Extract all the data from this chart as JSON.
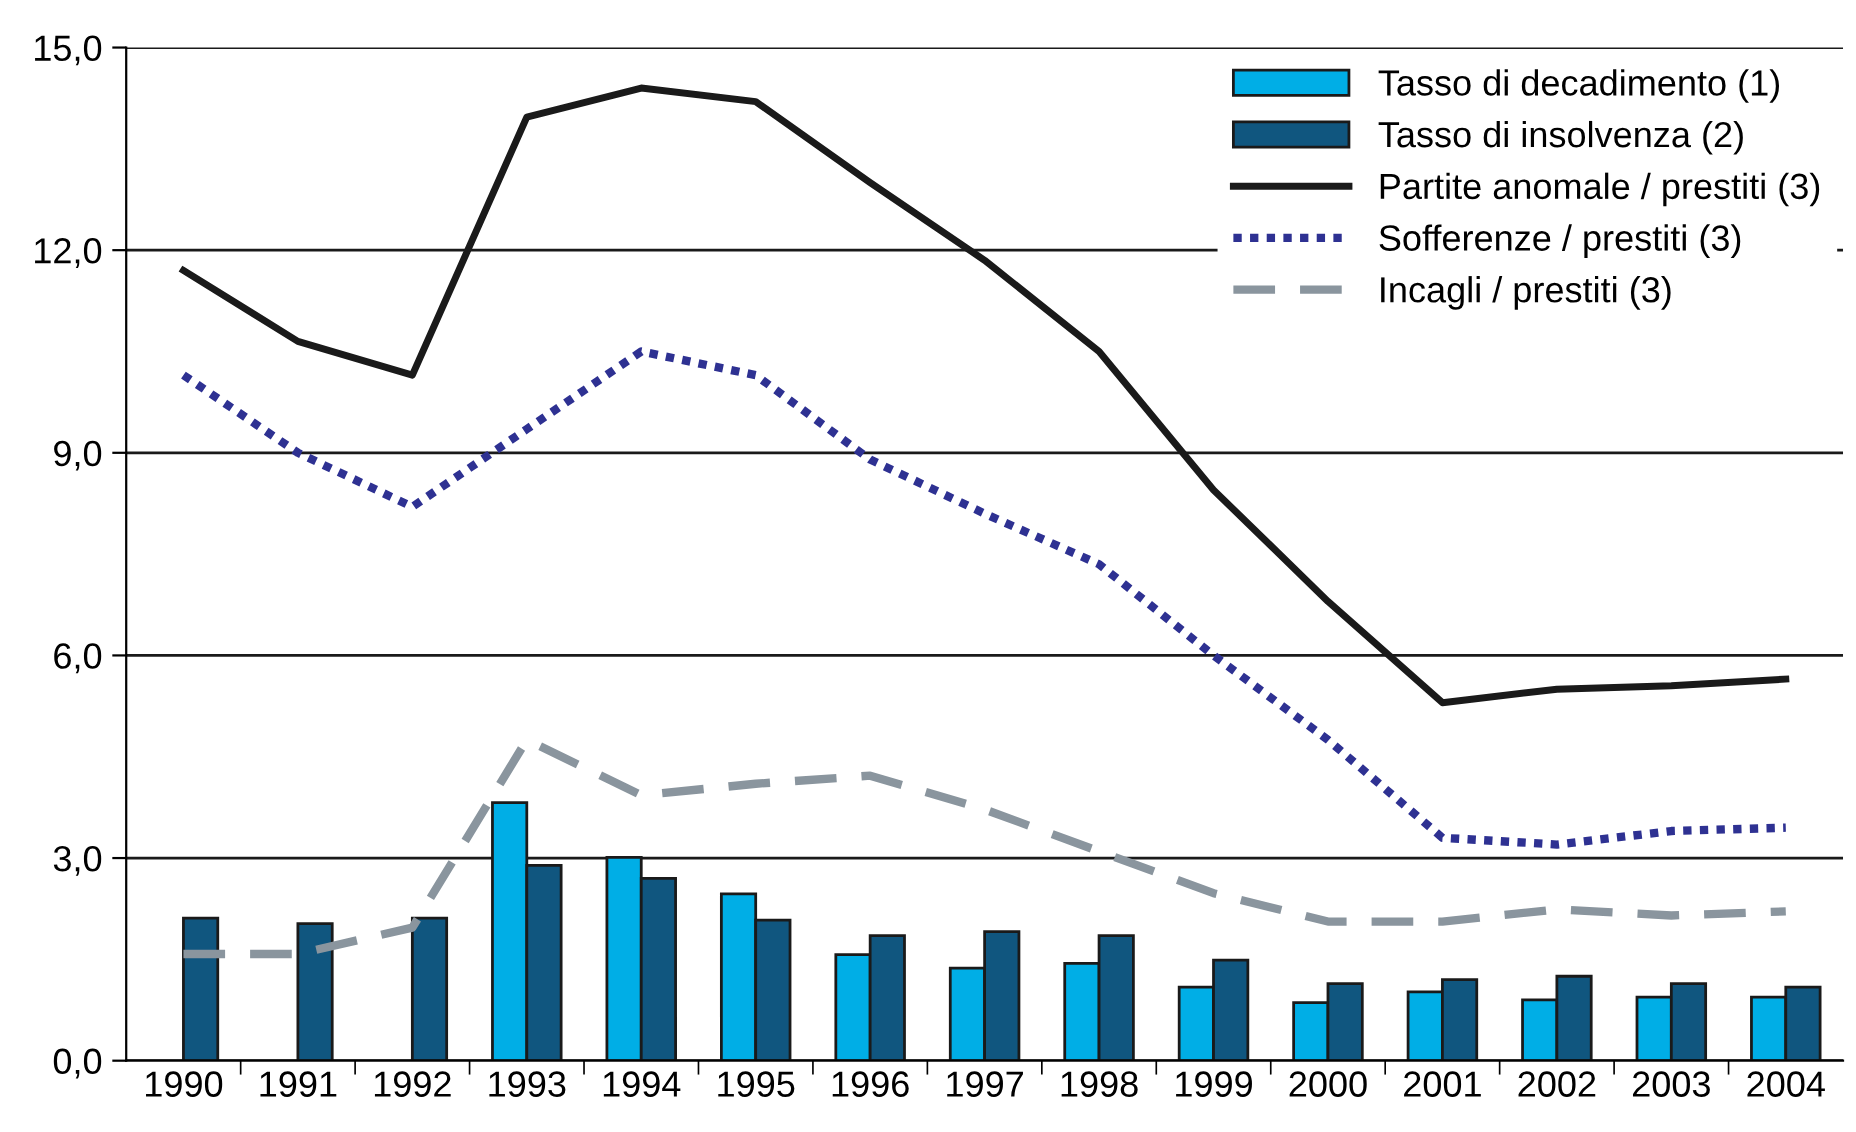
{
  "chart_data": {
    "type": "bar",
    "categories": [
      "1990",
      "1991",
      "1992",
      "1993",
      "1994",
      "1995",
      "1996",
      "1997",
      "1998",
      "1999",
      "2000",
      "2001",
      "2002",
      "2003",
      "2004"
    ],
    "series": [
      {
        "name": "Tasso di decadimento (1)",
        "color": "#00aee6",
        "values": [
          null,
          null,
          null,
          3.82,
          3.01,
          2.47,
          1.57,
          1.37,
          1.44,
          1.09,
          0.86,
          1.02,
          0.9,
          0.94,
          0.94
        ]
      },
      {
        "name": "Tasso di insolvenza (2)",
        "color": "#10567f",
        "values": [
          2.11,
          2.03,
          2.11,
          2.89,
          2.7,
          2.08,
          1.85,
          1.91,
          1.85,
          1.49,
          1.14,
          1.2,
          1.25,
          1.14,
          1.09
        ]
      },
      {
        "name": "Partite anomale / prestiti (3)",
        "type": "line",
        "line_style": "solid",
        "color": "#1a1a1a",
        "values": [
          11.7,
          10.65,
          10.15,
          13.97,
          14.4,
          14.2,
          13.0,
          11.85,
          10.5,
          8.45,
          6.8,
          5.3,
          5.5,
          5.55,
          5.65
        ]
      },
      {
        "name": "Sofferenze / prestiti (3)",
        "type": "line",
        "line_style": "dotted",
        "color": "#2e3192",
        "values": [
          10.15,
          9.0,
          8.2,
          9.35,
          10.5,
          10.15,
          8.9,
          8.1,
          7.35,
          6.0,
          4.75,
          3.3,
          3.2,
          3.4,
          3.45
        ]
      },
      {
        "name": "Incagli / prestiti (3)",
        "type": "line",
        "line_style": "dashed",
        "color": "#8a959e",
        "values": [
          1.58,
          1.58,
          1.97,
          4.75,
          3.93,
          4.1,
          4.22,
          3.72,
          3.1,
          2.48,
          2.06,
          2.06,
          2.24,
          2.15,
          2.21
        ]
      }
    ],
    "ylim": [
      0,
      15
    ],
    "yticks": [
      {
        "value": 0,
        "label": "0,0"
      },
      {
        "value": 3,
        "label": "3,0"
      },
      {
        "value": 6,
        "label": "6,0"
      },
      {
        "value": 9,
        "label": "9,0"
      },
      {
        "value": 12,
        "label": "12,0"
      },
      {
        "value": 15,
        "label": "15,0"
      }
    ],
    "grid": "y",
    "legend": "top right",
    "marker": "none"
  }
}
